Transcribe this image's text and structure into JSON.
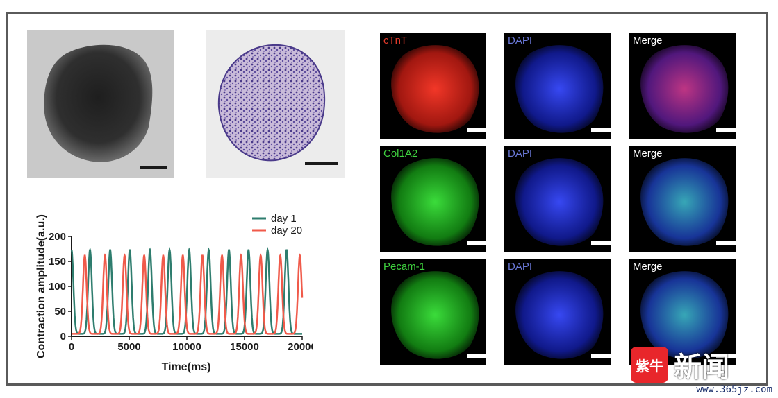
{
  "panels": {
    "row1": [
      {
        "label": "cTnT",
        "color": "#e23a2b",
        "kind": "red"
      },
      {
        "label": "DAPI",
        "color": "#6a78d8",
        "kind": "blue"
      },
      {
        "label": "Merge",
        "color": "#ffffff",
        "kind": "merge-red"
      }
    ],
    "row2": [
      {
        "label": "Col1A2",
        "color": "#3fd13f",
        "kind": "green"
      },
      {
        "label": "DAPI",
        "color": "#6a78d8",
        "kind": "blue"
      },
      {
        "label": "Merge",
        "color": "#ffffff",
        "kind": "merge-green"
      }
    ],
    "row3": [
      {
        "label": "Pecam-1",
        "color": "#3fd13f",
        "kind": "green"
      },
      {
        "label": "DAPI",
        "color": "#6a78d8",
        "kind": "blue"
      },
      {
        "label": "Merge",
        "color": "#ffffff",
        "kind": "merge-green"
      }
    ]
  },
  "watermark": {
    "logo_text": "紫牛",
    "text": "新闻",
    "site": "www.365jz.com"
  },
  "chart_data": {
    "type": "line",
    "title": "",
    "xlabel": "Time(ms)",
    "ylabel": "Contraction amplitude(a.u.)",
    "xlim": [
      0,
      20000
    ],
    "ylim": [
      0,
      200
    ],
    "xticks": [
      0,
      5000,
      10000,
      15000,
      20000
    ],
    "yticks": [
      0,
      50,
      100,
      150,
      200
    ],
    "legend_position": "top-right",
    "series": [
      {
        "name": "day 1",
        "color": "#2e7d6e",
        "baseline": 5,
        "peak": 173,
        "peak_times_ms": [
          0,
          1600,
          3350,
          5050,
          6800,
          8500,
          10200,
          11900,
          13650,
          15350,
          17000,
          18650
        ]
      },
      {
        "name": "day 20",
        "color": "#f05a4a",
        "baseline": 5,
        "peak": 162,
        "peak_times_ms": [
          1150,
          2900,
          4600,
          6300,
          7950,
          9650,
          11350,
          13050,
          14700,
          16400,
          18100,
          19800
        ]
      }
    ]
  }
}
